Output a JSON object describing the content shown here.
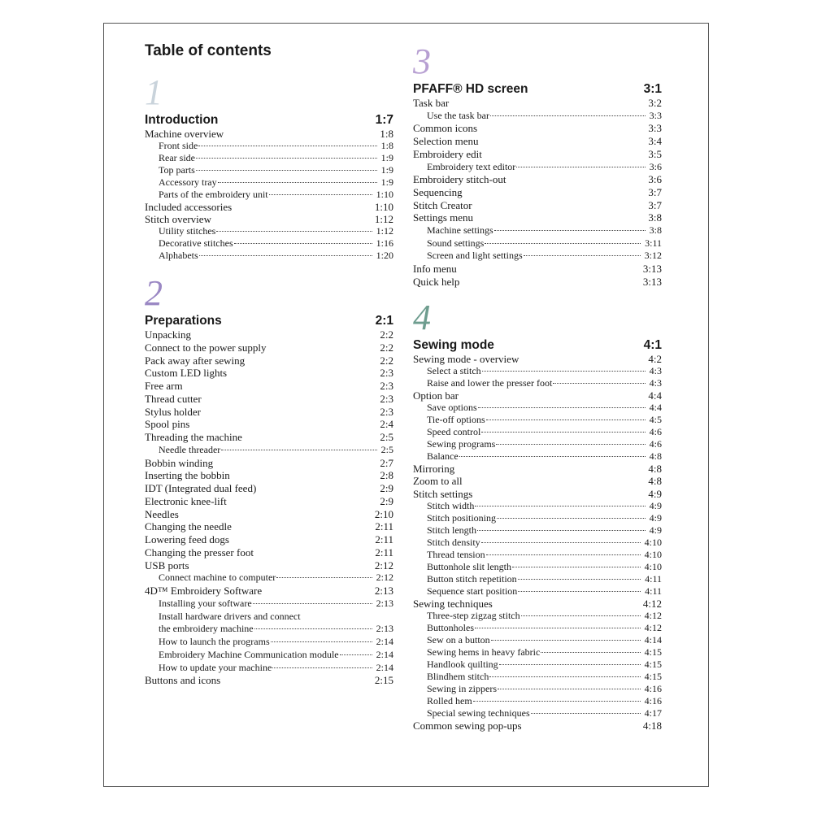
{
  "title": "Table of contents",
  "colors": {
    "chapter1": "#c9d3db",
    "chapter2": "#9b88c4",
    "chapter3": "#b79fd2",
    "chapter4": "#6e9d8f"
  },
  "sections": [
    {
      "number": "1",
      "title": "Introduction",
      "page": "1:7",
      "entries": [
        {
          "label": "Machine overview",
          "page": "1:8",
          "level": 0
        },
        {
          "label": "Front side",
          "page": "1:8",
          "level": 1
        },
        {
          "label": "Rear side",
          "page": "1:9",
          "level": 1
        },
        {
          "label": "Top parts",
          "page": "1:9",
          "level": 1
        },
        {
          "label": "Accessory tray",
          "page": "1:9",
          "level": 1
        },
        {
          "label": "Parts of the embroidery unit",
          "page": "1:10",
          "level": 1
        },
        {
          "label": "Included accessories",
          "page": "1:10",
          "level": 0
        },
        {
          "label": "Stitch overview",
          "page": "1:12",
          "level": 0
        },
        {
          "label": "Utility stitches",
          "page": "1:12",
          "level": 1
        },
        {
          "label": "Decorative stitches",
          "page": "1:16",
          "level": 1
        },
        {
          "label": "Alphabets",
          "page": "1:20",
          "level": 1
        }
      ]
    },
    {
      "number": "2",
      "title": "Preparations",
      "page": "2:1",
      "entries": [
        {
          "label": "Unpacking",
          "page": "2:2",
          "level": 0
        },
        {
          "label": "Connect to the power supply",
          "page": "2:2",
          "level": 0
        },
        {
          "label": "Pack away after sewing",
          "page": "2:2",
          "level": 0
        },
        {
          "label": "Custom LED lights",
          "page": "2:3",
          "level": 0
        },
        {
          "label": "Free arm",
          "page": "2:3",
          "level": 0
        },
        {
          "label": "Thread cutter",
          "page": "2:3",
          "level": 0
        },
        {
          "label": "Stylus holder",
          "page": "2:3",
          "level": 0
        },
        {
          "label": "Spool pins",
          "page": "2:4",
          "level": 0
        },
        {
          "label": "Threading the machine",
          "page": "2:5",
          "level": 0
        },
        {
          "label": "Needle threader",
          "page": "2:5",
          "level": 1
        },
        {
          "label": "Bobbin winding",
          "page": "2:7",
          "level": 0
        },
        {
          "label": "Inserting the bobbin",
          "page": "2:8",
          "level": 0
        },
        {
          "label": "IDT (Integrated dual feed)",
          "page": "2:9",
          "level": 0
        },
        {
          "label": "Electronic knee-lift",
          "page": "2:9",
          "level": 0
        },
        {
          "label": "Needles",
          "page": "2:10",
          "level": 0
        },
        {
          "label": "Changing the needle",
          "page": "2:11",
          "level": 0
        },
        {
          "label": "Lowering feed dogs",
          "page": "2:11",
          "level": 0
        },
        {
          "label": "Changing the presser foot",
          "page": "2:11",
          "level": 0
        },
        {
          "label": "USB ports",
          "page": "2:12",
          "level": 0
        },
        {
          "label": "Connect machine to computer",
          "page": "2:12",
          "level": 1
        },
        {
          "label": "4D™ Embroidery Software",
          "page": "2:13",
          "level": 0
        },
        {
          "label": "Installing your software",
          "page": "2:13",
          "level": 1
        },
        {
          "label": "Install hardware drivers and connect",
          "page": "",
          "level": 1
        },
        {
          "label": "the embroidery machine",
          "page": "2:13",
          "level": 1
        },
        {
          "label": "How to launch the programs",
          "page": "2:14",
          "level": 1
        },
        {
          "label": "Embroidery Machine Communication module",
          "page": "2:14",
          "level": 1
        },
        {
          "label": "How to update your machine",
          "page": "2:14",
          "level": 1
        },
        {
          "label": "Buttons and icons",
          "page": "2:15",
          "level": 0
        }
      ]
    },
    {
      "number": "3",
      "title": "PFAFF® HD screen",
      "page": "3:1",
      "entries": [
        {
          "label": "Task bar",
          "page": "3:2",
          "level": 0
        },
        {
          "label": "Use the task bar",
          "page": "3:3",
          "level": 1
        },
        {
          "label": "Common icons",
          "page": "3:3",
          "level": 0
        },
        {
          "label": "Selection menu",
          "page": "3:4",
          "level": 0
        },
        {
          "label": "Embroidery edit",
          "page": "3:5",
          "level": 0
        },
        {
          "label": "Embroidery text editor",
          "page": "3:6",
          "level": 1
        },
        {
          "label": "Embroidery stitch-out",
          "page": "3:6",
          "level": 0
        },
        {
          "label": "Sequencing",
          "page": "3:7",
          "level": 0
        },
        {
          "label": "Stitch Creator",
          "page": "3:7",
          "level": 0
        },
        {
          "label": "Settings menu",
          "page": "3:8",
          "level": 0
        },
        {
          "label": "Machine settings",
          "page": "3:8",
          "level": 1
        },
        {
          "label": "Sound settings",
          "page": "3:11",
          "level": 1
        },
        {
          "label": "Screen and light settings",
          "page": "3:12",
          "level": 1
        },
        {
          "label": "Info menu",
          "page": "3:13",
          "level": 0
        },
        {
          "label": "Quick help",
          "page": "3:13",
          "level": 0
        }
      ]
    },
    {
      "number": "4",
      "title": "Sewing mode",
      "page": "4:1",
      "entries": [
        {
          "label": "Sewing mode - overview",
          "page": "4:2",
          "level": 0
        },
        {
          "label": "Select a stitch",
          "page": "4:3",
          "level": 1
        },
        {
          "label": "Raise and lower the presser foot",
          "page": "4:3",
          "level": 1
        },
        {
          "label": "Option bar",
          "page": "4:4",
          "level": 0
        },
        {
          "label": "Save options",
          "page": "4:4",
          "level": 1
        },
        {
          "label": "Tie-off options",
          "page": "4:5",
          "level": 1
        },
        {
          "label": "Speed control",
          "page": "4:6",
          "level": 1
        },
        {
          "label": "Sewing programs",
          "page": "4:6",
          "level": 1
        },
        {
          "label": "Balance",
          "page": "4:8",
          "level": 1
        },
        {
          "label": "Mirroring",
          "page": "4:8",
          "level": 0
        },
        {
          "label": "Zoom to all",
          "page": "4:8",
          "level": 0
        },
        {
          "label": "Stitch settings",
          "page": "4:9",
          "level": 0
        },
        {
          "label": "Stitch width",
          "page": "4:9",
          "level": 1
        },
        {
          "label": "Stitch positioning",
          "page": "4:9",
          "level": 1
        },
        {
          "label": "Stitch length",
          "page": "4:9",
          "level": 1
        },
        {
          "label": "Stitch density",
          "page": "4:10",
          "level": 1
        },
        {
          "label": "Thread tension",
          "page": "4:10",
          "level": 1
        },
        {
          "label": "Buttonhole slit length",
          "page": "4:10",
          "level": 1
        },
        {
          "label": "Button stitch repetition",
          "page": "4:11",
          "level": 1
        },
        {
          "label": "Sequence start position",
          "page": "4:11",
          "level": 1
        },
        {
          "label": "Sewing techniques",
          "page": "4:12",
          "level": 0
        },
        {
          "label": "Three-step zigzag stitch",
          "page": "4:12",
          "level": 1
        },
        {
          "label": "Buttonholes",
          "page": "4:12",
          "level": 1
        },
        {
          "label": "Sew on a button",
          "page": "4:14",
          "level": 1
        },
        {
          "label": "Sewing hems in heavy fabric",
          "page": "4:15",
          "level": 1
        },
        {
          "label": "Handlook quilting",
          "page": "4:15",
          "level": 1
        },
        {
          "label": "Blindhem stitch",
          "page": "4:15",
          "level": 1
        },
        {
          "label": "Sewing in zippers",
          "page": "4:16",
          "level": 1
        },
        {
          "label": "Rolled hem",
          "page": "4:16",
          "level": 1
        },
        {
          "label": "Special sewing techniques",
          "page": "4:17",
          "level": 1
        },
        {
          "label": "Common sewing pop-ups",
          "page": "4:18",
          "level": 0
        }
      ]
    }
  ]
}
